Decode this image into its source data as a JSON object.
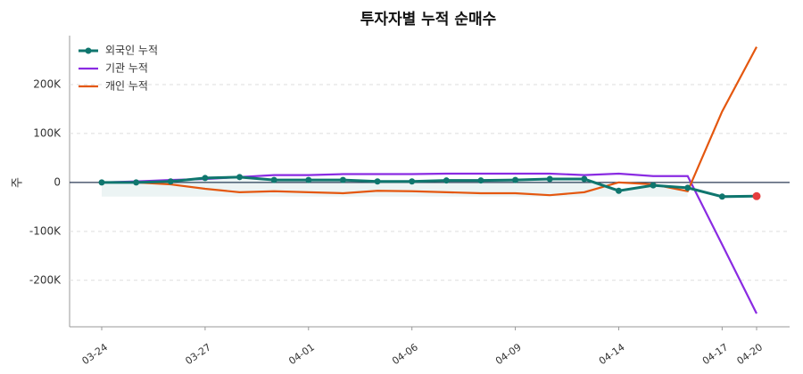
{
  "chart_data": {
    "type": "line",
    "title": "투자자별 누적 순매수",
    "y_label": "주",
    "categories": [
      "03-24",
      null,
      null,
      "03-27",
      null,
      null,
      "04-01",
      null,
      null,
      "04-06",
      null,
      null,
      "04-09",
      null,
      null,
      "04-14",
      null,
      null,
      "04-17",
      "04-20"
    ],
    "series": [
      {
        "name": "외국인 누적",
        "color": "#0f766e",
        "markers": true,
        "values": [
          0,
          0,
          2000,
          9000,
          11000,
          5000,
          5000,
          5000,
          2000,
          2000,
          4000,
          4000,
          5000,
          7000,
          7000,
          -17000,
          -6000,
          -11000,
          -29000,
          -28000
        ]
      },
      {
        "name": "기관 누적",
        "color": "#8a2be2",
        "markers": false,
        "values": [
          0,
          2000,
          5000,
          7000,
          11000,
          15000,
          15000,
          17000,
          17000,
          17000,
          18000,
          18000,
          18000,
          18000,
          15000,
          18000,
          13000,
          13000,
          -127000,
          -268000
        ]
      },
      {
        "name": "개인 누적",
        "color": "#e4570f",
        "markers": false,
        "values": [
          0,
          0,
          -4000,
          -13000,
          -20000,
          -18000,
          -20000,
          -22000,
          -17000,
          -18000,
          -20000,
          -22000,
          -22000,
          -26000,
          -20000,
          0,
          -4000,
          -18000,
          145000,
          277000
        ]
      }
    ],
    "ylim": [
      -295000,
      300000
    ],
    "yticks": [
      {
        "value": -200000,
        "label": "-200K"
      },
      {
        "value": -100000,
        "label": "-100K"
      },
      0,
      {
        "value": 100000,
        "label": "100K"
      },
      {
        "value": 200000,
        "label": "200K"
      }
    ],
    "grid": true,
    "legend": "upper left"
  }
}
